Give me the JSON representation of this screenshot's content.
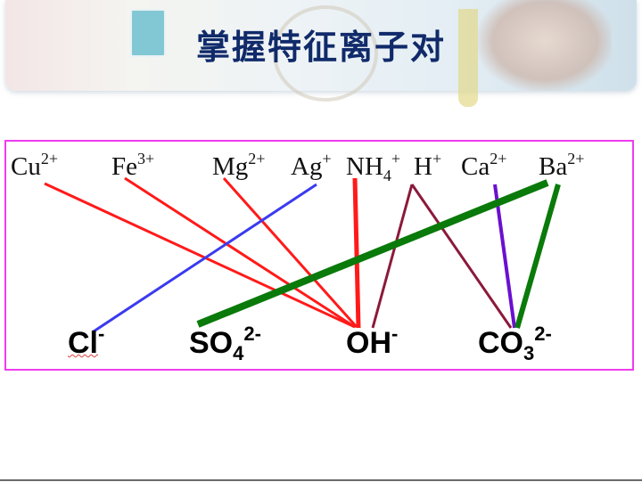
{
  "title": "掌握特征离子对",
  "cations": [
    {
      "base": "Cu",
      "sup": "2+"
    },
    {
      "base": "Fe",
      "sup": "3+"
    },
    {
      "base": "Mg",
      "sup": "2+"
    },
    {
      "base": "Ag",
      "sup": "+"
    },
    {
      "base": "NH",
      "sub": "4",
      "sup": "+"
    },
    {
      "base": "H",
      "sup": "+"
    },
    {
      "base": "Ca",
      "sup": "2+"
    },
    {
      "base": "Ba",
      "sup": "2+"
    }
  ],
  "anions": [
    {
      "base": "Cl",
      "sup": "-"
    },
    {
      "base": "SO",
      "sub": "4",
      "sup": "2-"
    },
    {
      "base": "OH",
      "sup": "-"
    },
    {
      "base": "CO",
      "sub": "3",
      "sup": "2-"
    }
  ],
  "pairs": [
    {
      "cation": "Cu2+",
      "anion": "OH-",
      "color": "#ff1a1a"
    },
    {
      "cation": "Fe3+",
      "anion": "OH-",
      "color": "#ff1a1a"
    },
    {
      "cation": "Mg2+",
      "anion": "OH-",
      "color": "#ff1a1a"
    },
    {
      "cation": "Ag+",
      "anion": "Cl-",
      "color": "#3a3af0"
    },
    {
      "cation": "NH4+",
      "anion": "OH-",
      "color": "#ff1a1a"
    },
    {
      "cation": "H+",
      "anion": "OH-",
      "color": "#8b1a3a"
    },
    {
      "cation": "H+",
      "anion": "CO32-",
      "color": "#8b1a3a"
    },
    {
      "cation": "Ca2+",
      "anion": "CO32-",
      "color": "#6a10d0"
    },
    {
      "cation": "Ba2+",
      "anion": "SO42-",
      "color": "#0a7a0a"
    },
    {
      "cation": "Ba2+",
      "anion": "CO32-",
      "color": "#0a7a0a"
    }
  ],
  "colors": {
    "border": "#f03cf0",
    "title": "#102a6a"
  }
}
